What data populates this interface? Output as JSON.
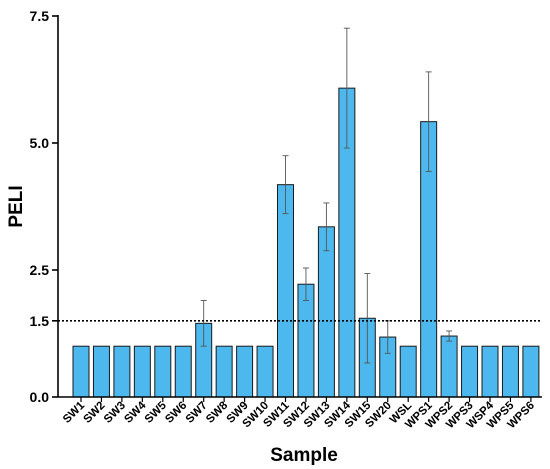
{
  "chart_data": {
    "type": "bar",
    "xlabel": "Sample",
    "ylabel": "PELI",
    "ylim": [
      0,
      7.5
    ],
    "yticks": [
      0.0,
      1.5,
      2.5,
      5.0,
      7.5
    ],
    "ytick_labels": [
      "0.0",
      "1.5",
      "2.5",
      "5.0",
      "7.5"
    ],
    "reference_line": {
      "y": 1.5,
      "style": "dotted"
    },
    "bar_color": "#4db8ee",
    "bar_edge_color": "#1a1a1a",
    "grid": false,
    "categories": [
      "SW1",
      "SW2",
      "SW3",
      "SW4",
      "SW5",
      "SW6",
      "SW7",
      "SW8",
      "SW9",
      "SW10",
      "SW11",
      "SW12",
      "SW13",
      "SW14",
      "SW15",
      "SW20",
      "WSL",
      "WPS1",
      "WPS2",
      "WPS3",
      "WSP4",
      "WPS5",
      "WPS6"
    ],
    "values": [
      1.0,
      1.0,
      1.0,
      1.0,
      1.0,
      1.0,
      1.45,
      1.0,
      1.0,
      1.0,
      4.18,
      2.22,
      3.35,
      6.08,
      1.55,
      1.18,
      1.0,
      5.42,
      1.2,
      1.0,
      1.0,
      1.0,
      1.0
    ],
    "errors": [
      0,
      0,
      0,
      0,
      0,
      0,
      0.45,
      0,
      0,
      0,
      0.57,
      0.32,
      0.47,
      1.18,
      0.88,
      0.32,
      0,
      0.98,
      0.1,
      0,
      0,
      0,
      0
    ]
  }
}
